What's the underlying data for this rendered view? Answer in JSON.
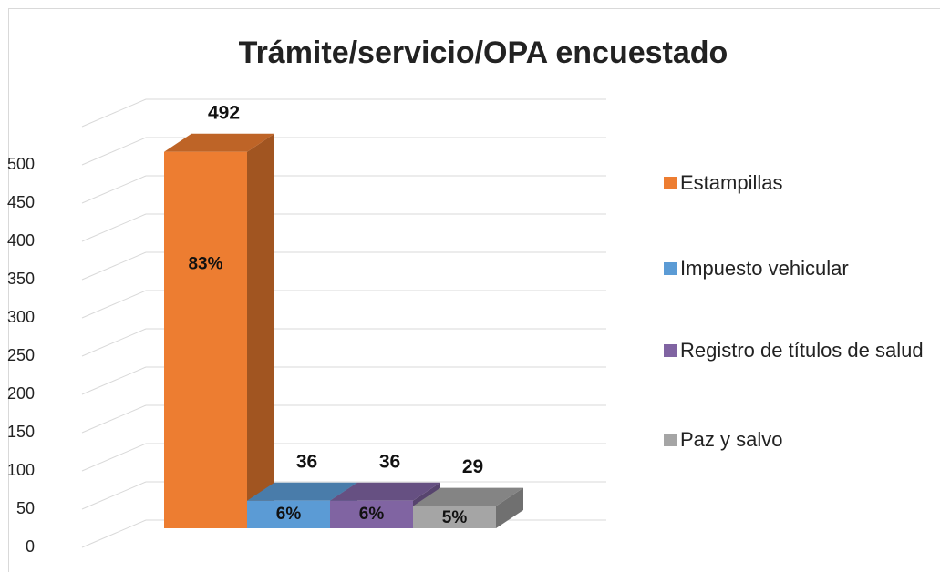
{
  "chart_data": {
    "type": "bar3d",
    "title": "Trámite/servicio/OPA encuestado",
    "series": [
      {
        "name": "Estampillas",
        "color": "#ED7D31",
        "values": [
          492
        ],
        "share": 83,
        "share_label": "83%"
      },
      {
        "name": "Impuesto vehicular",
        "color": "#5B9BD5",
        "values": [
          36
        ],
        "share": 6,
        "share_label": "6%"
      },
      {
        "name": "Registro de títulos de salud",
        "color": "#8064A2",
        "values": [
          36
        ],
        "share": 6,
        "share_label": "6%"
      },
      {
        "name": "Paz y salvo",
        "color": "#A5A5A5",
        "values": [
          29
        ],
        "share": 5,
        "share_label": "5%"
      }
    ],
    "ylim": [
      0,
      550
    ],
    "yticks": [
      0,
      50,
      100,
      150,
      200,
      250,
      300,
      350,
      400,
      450,
      500
    ],
    "grid": true,
    "legend": "right"
  }
}
